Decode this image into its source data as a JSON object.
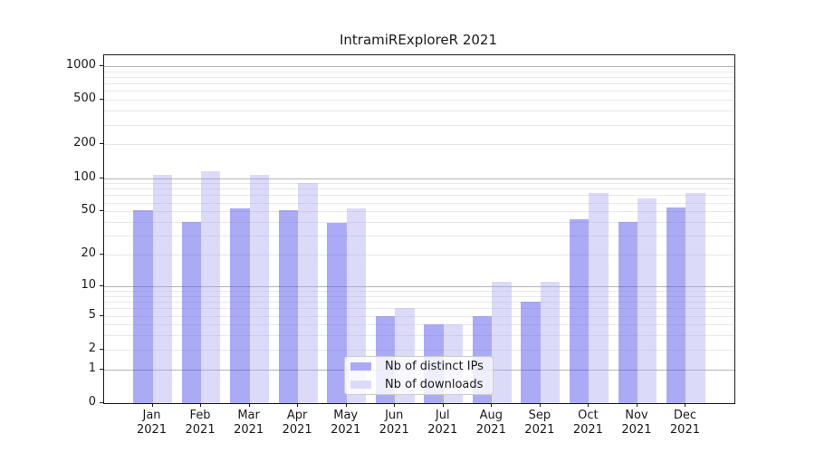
{
  "chart_data": {
    "type": "bar",
    "title": "IntramiRExploreR 2021",
    "x_categories": [
      "Jan",
      "Feb",
      "Mar",
      "Apr",
      "May",
      "Jun",
      "Jul",
      "Aug",
      "Sep",
      "Oct",
      "Nov",
      "Dec"
    ],
    "x_year": "2021",
    "series": [
      {
        "name": "Nb of distinct IPs",
        "color": "rgba(80,80,235,0.48)",
        "swatch": "#aaaaf5",
        "values": [
          51,
          40,
          53,
          51,
          39,
          5,
          4,
          5,
          7,
          42,
          40,
          54
        ]
      },
      {
        "name": "Nb of downloads",
        "color": "rgba(160,160,240,0.38)",
        "swatch": "#dbdbf9",
        "values": [
          107,
          116,
          106,
          90,
          53,
          6,
          4,
          11,
          11,
          74,
          65,
          74
        ]
      }
    ],
    "y_scale": "log1p",
    "ylim": [
      0,
      1250
    ],
    "y_ticks": [
      0,
      1,
      2,
      5,
      10,
      20,
      50,
      100,
      200,
      500,
      1000
    ],
    "y_major_gridlines": [
      1,
      10,
      100,
      1000
    ],
    "y_minor_gridlines": [
      2,
      3,
      4,
      5,
      6,
      7,
      8,
      9,
      20,
      30,
      40,
      50,
      60,
      70,
      80,
      90,
      200,
      300,
      400,
      500,
      600,
      700,
      800,
      900
    ],
    "grid": true,
    "legend_position": "lower-center",
    "colors": {
      "major_grid": "#b3b3b3",
      "minor_grid": "#e8e8e8",
      "axis": "#1a1a1a",
      "text": "#1a1a1a",
      "legend_border": "#cccccc",
      "background": "#ffffff"
    }
  }
}
